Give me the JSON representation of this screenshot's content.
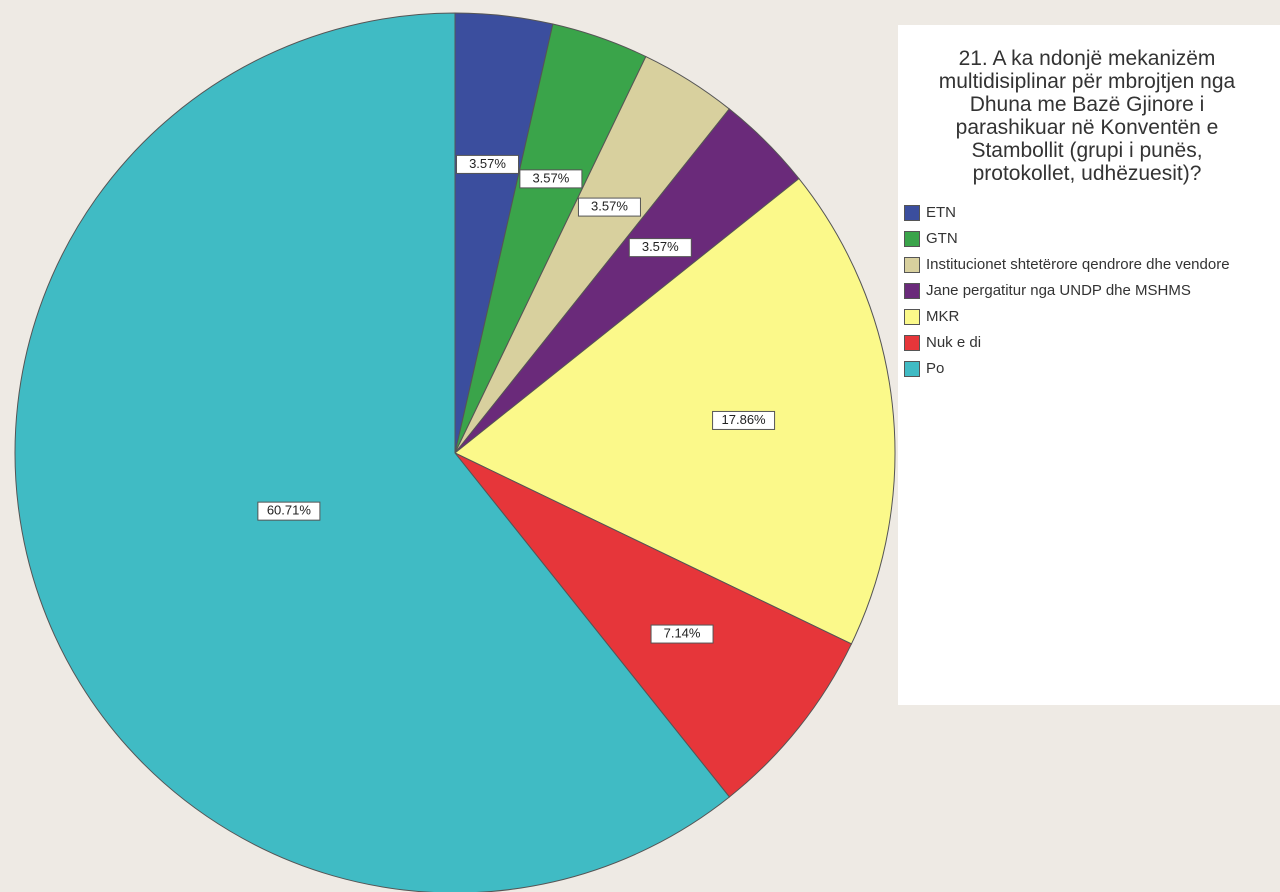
{
  "chart_data": {
    "type": "pie",
    "title": "21. A ka ndonjë mekanizëm multidisiplinar për mbrojtjen nga Dhuna me Bazë Gjinore i parashikuar në Konventën e Stambollit (grupi i punës, protokollet, udhëzuesit)?",
    "categories": [
      "ETN",
      "GTN",
      "Institucionet shtetërore qendrore dhe vendore",
      "Jane pergatitur nga UNDP dhe MSHMS",
      "MKR",
      "Nuk e di",
      "Po"
    ],
    "values": [
      3.57,
      3.57,
      3.57,
      3.57,
      17.86,
      7.14,
      60.71
    ],
    "value_labels": [
      "3.57%",
      "3.57%",
      "3.57%",
      "3.57%",
      "17.86%",
      "7.14%",
      "60.71%"
    ],
    "colors": [
      "#3b4e9e",
      "#3aa44a",
      "#d8d09e",
      "#6a2a7a",
      "#fbf98a",
      "#e6363a",
      "#40bbc4"
    ]
  }
}
